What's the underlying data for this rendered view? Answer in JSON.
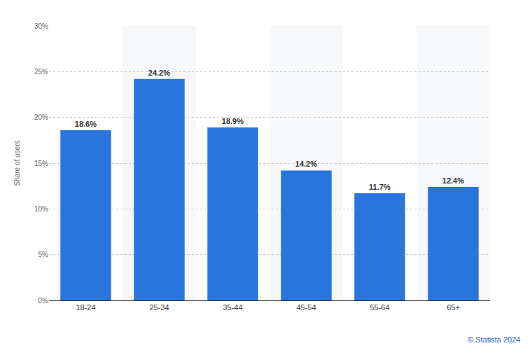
{
  "chart_data": {
    "type": "bar",
    "y_label": "Share of users",
    "categories": [
      "18-24",
      "25-34",
      "35-44",
      "45-54",
      "55-64",
      "65+"
    ],
    "values": [
      18.6,
      24.2,
      18.9,
      14.2,
      11.7,
      12.4
    ],
    "value_labels": [
      "18.6%",
      "24.2%",
      "18.9%",
      "14.2%",
      "11.7%",
      "12.4%"
    ],
    "color": "#2876dd",
    "ylim": [
      0,
      30
    ],
    "yticks": [
      {
        "value": 0,
        "label": "0%"
      },
      {
        "value": 5,
        "label": "5%"
      },
      {
        "value": 10,
        "label": "10%"
      },
      {
        "value": 15,
        "label": "15%"
      },
      {
        "value": 20,
        "label": "20%"
      },
      {
        "value": 25,
        "label": "25%"
      },
      {
        "value": 30,
        "label": "30%"
      }
    ],
    "grid": true,
    "data_labels": true,
    "annotations": [
      "© Statista 2024"
    ]
  }
}
